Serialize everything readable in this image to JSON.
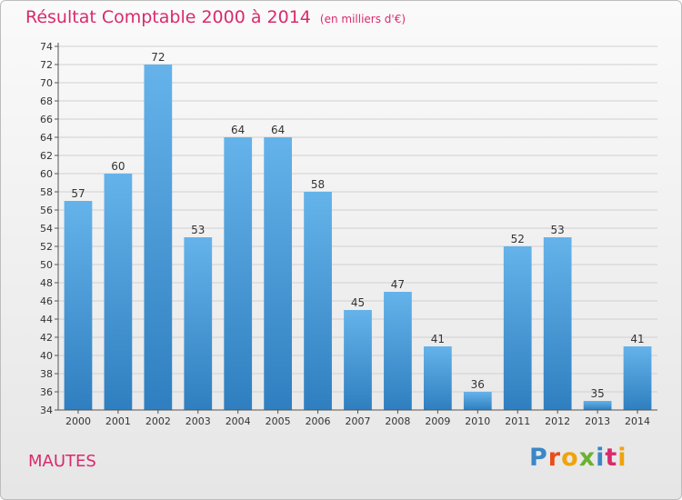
{
  "header": {
    "title": "Résultat Comptable 2000 à 2014",
    "subtitle": "(en milliers d'€)"
  },
  "commune": "MAUTES",
  "logo": {
    "text": "Proxiti",
    "letters": [
      {
        "char": "P",
        "color": "#3a87c8"
      },
      {
        "char": "r",
        "color": "#e94e1b"
      },
      {
        "char": "o",
        "color": "#f0a30a"
      },
      {
        "char": "x",
        "color": "#6bb131"
      },
      {
        "char": "i",
        "color": "#3a87c8"
      },
      {
        "char": "t",
        "color": "#d92a6d"
      },
      {
        "char": "i",
        "color": "#f0a30a"
      }
    ]
  },
  "colors": {
    "bar_light": "#65b3ea",
    "bar_dark": "#2f7fc0",
    "title": "#d92a6d"
  },
  "chart_data": {
    "type": "bar",
    "categories": [
      "2000",
      "2001",
      "2002",
      "2003",
      "2004",
      "2005",
      "2006",
      "2007",
      "2008",
      "2009",
      "2010",
      "2011",
      "2012",
      "2013",
      "2014"
    ],
    "values": [
      57,
      60,
      72,
      53,
      64,
      64,
      58,
      45,
      47,
      41,
      36,
      52,
      53,
      35,
      41
    ],
    "ylim": [
      34,
      74
    ],
    "ytick_step": 2,
    "grid": true
  }
}
